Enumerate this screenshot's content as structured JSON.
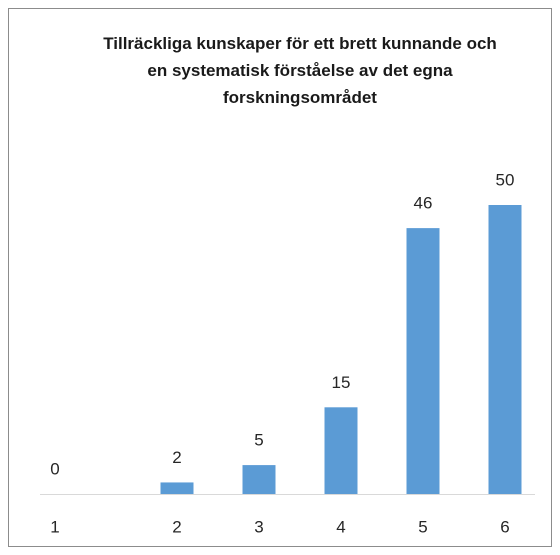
{
  "chart_data": {
    "type": "bar",
    "title": "Tillräckliga kunskaper för ett brett kunnande och en systematisk förståelse av det egna forskningsområdet",
    "categories": [
      "1",
      "2",
      "3",
      "4",
      "5",
      "6"
    ],
    "values": [
      0,
      2,
      5,
      15,
      46,
      50
    ],
    "color": "#5b9bd5"
  }
}
